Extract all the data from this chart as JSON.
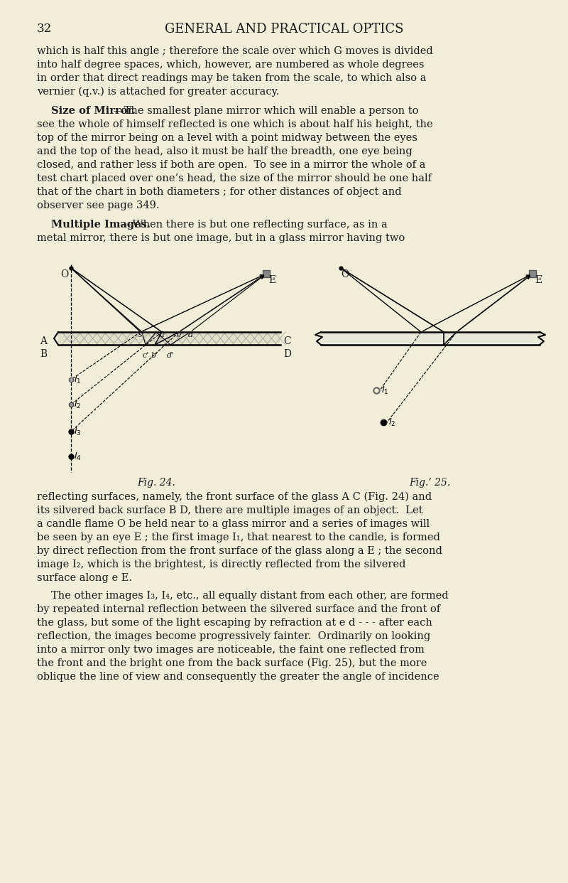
{
  "bg_color": "#f0edd8",
  "text_color": "#1a1a1a",
  "page_number": "32",
  "header": "GENERAL AND PRACTICAL OPTICS",
  "para1": "which is half this angle ; therefore the scale over which G moves is divided\ninto half degree spaces, which, however, are numbered as whole degrees\nin order that direct readings may be taken from the scale, to which also a\nvernier (q.v.) is attached for greater accuracy.",
  "para2_bold": "Size of Mirror.",
  "para2_rest": "—The smallest plane mirror which will enable a person to\nsee the whole of himself reflected is one which is about half his height, the\ntop of the mirror being on a level with a point midway between the eyes\nand the top of the head, also it must be half the breadth, one eye being\nclosed, and rather less if both are open.  To see in a mirror the whole of a\ntest chart placed over one’s head, the size of the mirror should be one half\nthat of the chart in both diameters ; for other distances of object and\nobserver see page 349.",
  "para3_bold": "Multiple Images.",
  "para3_rest": "—When there is but one reflecting surface, as in a\nmetal mirror, there is but one image, but in a glass mirror having two",
  "fig24_caption": "Fig. 24.",
  "fig25_caption": "Fig.’ 25.",
  "para4": "reflecting surfaces, namely, the front surface of the glass A C (Fig. 24) and\nits silvered back surface B D, there are multiple images of an object.  Let\na candle flame O be held near to a glass mirror and a series of images will\nbe seen by an eye E ; the first image I₁, that nearest to the candle, is formed\nby direct reflection from the front surface of the glass along a E ; the second\nimage I₂, which is the brightest, is directly reflected from the silvered\nsurface along e E.",
  "para5": "The other images I₃, I₄, etc., all equally distant from each other, are formed\nby repeated internal reflection between the silvered surface and the front of\nthe glass, but some of the light escaping by refraction at e d - - - after each\nreflection, the images become progressively fainter.  Ordinarily on looking\ninto a mirror only two images are noticeable, the faint one reflected from\nthe front and the bright one from the back surface (Fig. 25), but the more\noblique the line of view and consequently the greater the angle of incidence"
}
